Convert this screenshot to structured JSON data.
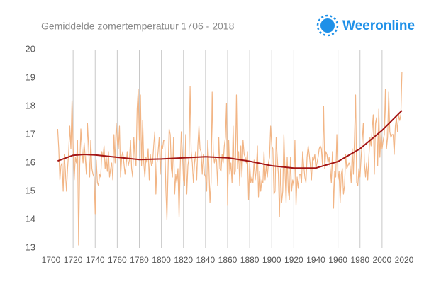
{
  "chart_data": {
    "type": "line",
    "title": "Gemiddelde zomertemperatuur 1706 - 2018",
    "brand": "Weeronline",
    "xlim": [
      1700,
      2020
    ],
    "xticks": [
      1700,
      1720,
      1740,
      1760,
      1780,
      1800,
      1820,
      1840,
      1860,
      1880,
      1900,
      1920,
      1940,
      1960,
      1980,
      2000,
      2020
    ],
    "ylim": [
      13,
      20
    ],
    "yticks": [
      13,
      14,
      15,
      16,
      17,
      18,
      19,
      20
    ],
    "grid": true,
    "series": [
      {
        "color": "#f2b585",
        "x": [
          1706,
          1707,
          1708,
          1709,
          1710,
          1711,
          1712,
          1713,
          1714,
          1715,
          1716,
          1717,
          1718,
          1719,
          1720,
          1721,
          1722,
          1723,
          1724,
          1725,
          1726,
          1727,
          1728,
          1729,
          1730,
          1731,
          1732,
          1733,
          1734,
          1735,
          1736,
          1737,
          1738,
          1739,
          1740,
          1741,
          1742,
          1743,
          1744,
          1745,
          1746,
          1747,
          1748,
          1749,
          1750,
          1751,
          1752,
          1753,
          1754,
          1755,
          1756,
          1757,
          1758,
          1759,
          1760,
          1761,
          1762,
          1763,
          1764,
          1765,
          1766,
          1767,
          1768,
          1769,
          1770,
          1771,
          1772,
          1773,
          1774,
          1775,
          1776,
          1777,
          1778,
          1779,
          1780,
          1781,
          1782,
          1783,
          1784,
          1785,
          1786,
          1787,
          1788,
          1789,
          1790,
          1791,
          1792,
          1793,
          1794,
          1795,
          1796,
          1797,
          1798,
          1799,
          1800,
          1801,
          1802,
          1803,
          1804,
          1805,
          1806,
          1807,
          1808,
          1809,
          1810,
          1811,
          1812,
          1813,
          1814,
          1815,
          1816,
          1817,
          1818,
          1819,
          1820,
          1821,
          1822,
          1823,
          1824,
          1825,
          1826,
          1827,
          1828,
          1829,
          1830,
          1831,
          1832,
          1833,
          1834,
          1835,
          1836,
          1837,
          1838,
          1839,
          1840,
          1841,
          1842,
          1843,
          1844,
          1845,
          1846,
          1847,
          1848,
          1849,
          1850,
          1851,
          1852,
          1853,
          1854,
          1855,
          1856,
          1857,
          1858,
          1859,
          1860,
          1861,
          1862,
          1863,
          1864,
          1865,
          1866,
          1867,
          1868,
          1869,
          1870,
          1871,
          1872,
          1873,
          1874,
          1875,
          1876,
          1877,
          1878,
          1879,
          1880,
          1881,
          1882,
          1883,
          1884,
          1885,
          1886,
          1887,
          1888,
          1889,
          1890,
          1891,
          1892,
          1893,
          1894,
          1895,
          1896,
          1897,
          1898,
          1899,
          1900,
          1901,
          1902,
          1903,
          1904,
          1905,
          1906,
          1907,
          1908,
          1909,
          1910,
          1911,
          1912,
          1913,
          1914,
          1915,
          1916,
          1917,
          1918,
          1919,
          1920,
          1921,
          1922,
          1923,
          1924,
          1925,
          1926,
          1927,
          1928,
          1929,
          1930,
          1931,
          1932,
          1933,
          1934,
          1935,
          1936,
          1937,
          1938,
          1939,
          1940,
          1941,
          1942,
          1943,
          1944,
          1945,
          1946,
          1947,
          1948,
          1949,
          1950,
          1951,
          1952,
          1953,
          1954,
          1955,
          1956,
          1957,
          1958,
          1959,
          1960,
          1961,
          1962,
          1963,
          1964,
          1965,
          1966,
          1967,
          1968,
          1969,
          1970,
          1971,
          1972,
          1973,
          1974,
          1975,
          1976,
          1977,
          1978,
          1979,
          1980,
          1981,
          1982,
          1983,
          1984,
          1985,
          1986,
          1987,
          1988,
          1989,
          1990,
          1991,
          1992,
          1993,
          1994,
          1995,
          1996,
          1997,
          1998,
          1999,
          2000,
          2001,
          2002,
          2003,
          2004,
          2005,
          2006,
          2007,
          2008,
          2009,
          2010,
          2011,
          2012,
          2013,
          2014,
          2015,
          2016,
          2017,
          2018
        ],
        "values": [
          17.2,
          16.5,
          15.4,
          15.9,
          16.0,
          15.0,
          16.3,
          15.7,
          15.0,
          15.8,
          16.4,
          17.3,
          16.5,
          18.2,
          16.6,
          15.4,
          16.2,
          16.0,
          16.8,
          13.1,
          15.9,
          17.2,
          16.5,
          16.0,
          16.7,
          16.2,
          15.6,
          17.4,
          16.6,
          15.5,
          16.8,
          15.8,
          15.6,
          15.5,
          14.2,
          16.1,
          15.3,
          15.2,
          15.6,
          15.5,
          16.4,
          16.2,
          16.6,
          15.8,
          16.2,
          15.7,
          16.4,
          15.5,
          15.8,
          16.0,
          15.4,
          17.0,
          16.0,
          17.4,
          16.8,
          16.5,
          17.3,
          15.5,
          16.2,
          16.4,
          16.0,
          15.6,
          15.9,
          16.4,
          15.9,
          16.1,
          16.8,
          15.8,
          15.5,
          16.9,
          16.2,
          15.9,
          17.9,
          18.6,
          16.8,
          18.4,
          15.9,
          17.5,
          16.0,
          15.5,
          16.2,
          16.0,
          16.5,
          15.4,
          16.3,
          15.9,
          16.0,
          16.6,
          17.1,
          14.9,
          16.0,
          16.4,
          16.9,
          15.6,
          16.6,
          16.5,
          16.8,
          16.8,
          15.1,
          14.0,
          15.7,
          17.2,
          17.0,
          15.8,
          15.5,
          16.9,
          14.9,
          15.6,
          15.3,
          15.8,
          14.1,
          15.8,
          17.1,
          16.4,
          15.4,
          15.2,
          17.0,
          14.9,
          15.9,
          16.2,
          18.7,
          16.4,
          16.0,
          15.3,
          16.0,
          16.4,
          15.4,
          16.6,
          17.3,
          16.5,
          16.4,
          15.6,
          16.3,
          15.6,
          15.5,
          15.0,
          16.8,
          15.9,
          14.6,
          15.3,
          18.5,
          16.4,
          16.0,
          16.2,
          16.1,
          15.2,
          16.9,
          15.8,
          15.7,
          16.3,
          16.0,
          16.6,
          16.9,
          18.1,
          14.5,
          16.8,
          15.6,
          16.0,
          15.3,
          17.3,
          15.6,
          15.7,
          18.4,
          15.8,
          16.4,
          15.2,
          16.6,
          15.5,
          16.8,
          16.3,
          16.2,
          16.0,
          16.4,
          14.7,
          16.0,
          15.3,
          15.5,
          15.3,
          16.1,
          15.4,
          15.8,
          16.6,
          14.8,
          15.7,
          15.0,
          15.4,
          15.3,
          16.4,
          15.4,
          15.9,
          15.5,
          16.0,
          16.2,
          17.3,
          16.6,
          16.5,
          14.9,
          15.0,
          16.9,
          16.2,
          15.6,
          14.1,
          15.8,
          14.6,
          15.0,
          17.0,
          15.7,
          14.6,
          16.2,
          15.0,
          14.7,
          16.2,
          15.0,
          15.4,
          15.2,
          16.8,
          14.5,
          15.5,
          15.1,
          15.6,
          15.6,
          15.3,
          16.4,
          15.9,
          15.5,
          15.3,
          16.2,
          16.6,
          16.3,
          15.9,
          15.4,
          16.2,
          16.1,
          16.3,
          15.8,
          16.0,
          16.2,
          16.5,
          16.6,
          16.5,
          15.9,
          18.0,
          15.8,
          16.4,
          16.3,
          16.0,
          16.2,
          15.8,
          15.3,
          16.4,
          14.4,
          15.7,
          15.5,
          17.0,
          15.4,
          15.7,
          14.6,
          15.6,
          15.8,
          14.9,
          15.2,
          16.3,
          15.8,
          15.9,
          16.0,
          15.9,
          15.3,
          16.5,
          15.6,
          16.9,
          18.4,
          15.3,
          15.2,
          15.8,
          15.5,
          16.2,
          16.8,
          17.4,
          16.0,
          15.5,
          16.0,
          15.4,
          16.2,
          16.9,
          16.6,
          17.2,
          17.7,
          15.6,
          17.4,
          17.6,
          15.9,
          17.9,
          16.2,
          17.1,
          16.5,
          16.8,
          17.0,
          18.6,
          16.5,
          16.9,
          18.5,
          17.1,
          16.9,
          17.0,
          17.0,
          16.3,
          17.3,
          17.6,
          17.1,
          17.7,
          17.5,
          17.7,
          19.2
        ]
      },
      {
        "color": "#a31515",
        "x": [
          1706,
          1720,
          1730,
          1740,
          1760,
          1780,
          1800,
          1820,
          1840,
          1860,
          1880,
          1900,
          1920,
          1940,
          1960,
          1980,
          2000,
          2018
        ],
        "values": [
          16.07,
          16.27,
          16.3,
          16.28,
          16.2,
          16.12,
          16.14,
          16.18,
          16.22,
          16.18,
          16.06,
          15.9,
          15.82,
          15.82,
          16.05,
          16.5,
          17.15,
          17.85
        ]
      }
    ]
  }
}
